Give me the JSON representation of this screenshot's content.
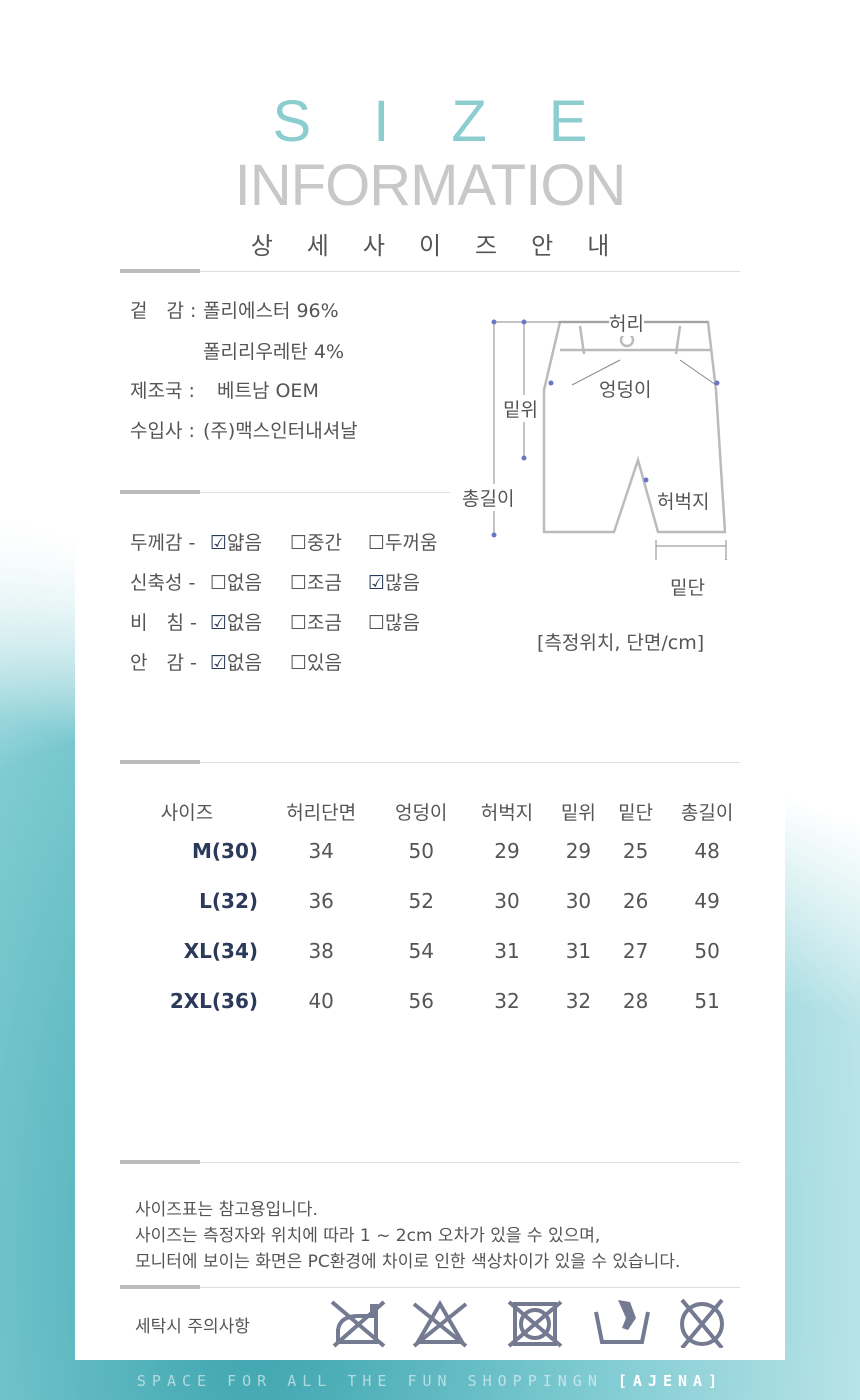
{
  "header": {
    "title_line1": "SIZE",
    "title_line2": "INFORMATION",
    "subtitle": "상세사이즈안내"
  },
  "material": {
    "outer_label": "겉　감 :",
    "outer_value1": "폴리에스터  96%",
    "outer_value2": "폴리리우레탄 4%",
    "origin_label": "제조국 :",
    "origin_value": "베트남 OEM",
    "importer_label": "수입사 :",
    "importer_value": "(주)맥스인터내셔날"
  },
  "diagram": {
    "waist": "허리",
    "hip": "엉덩이",
    "rise": "밑위",
    "length": "총길이",
    "thigh": "허벅지",
    "hem": "밑단",
    "note": "[측정위치, 단면/cm]",
    "line_color": "#6a77c4"
  },
  "properties": [
    {
      "label": "두께감 -",
      "options": [
        {
          "text": "얇음",
          "checked": true
        },
        {
          "text": "중간",
          "checked": false
        },
        {
          "text": "두꺼움",
          "checked": false
        }
      ]
    },
    {
      "label": "신축성 -",
      "options": [
        {
          "text": "없음",
          "checked": false
        },
        {
          "text": "조금",
          "checked": false
        },
        {
          "text": "많음",
          "checked": true
        }
      ]
    },
    {
      "label": "비　침 -",
      "options": [
        {
          "text": "없음",
          "checked": true
        },
        {
          "text": "조금",
          "checked": false
        },
        {
          "text": "많음",
          "checked": false
        }
      ]
    },
    {
      "label": "안　감 -",
      "options": [
        {
          "text": "없음",
          "checked": true
        },
        {
          "text": "있음",
          "checked": false
        }
      ]
    }
  ],
  "size_table": {
    "headers": [
      "사이즈",
      "허리단면",
      "엉덩이",
      "허벅지",
      "밑위",
      "밑단",
      "총길이"
    ],
    "rows": [
      [
        "M(30)",
        "34",
        "50",
        "29",
        "29",
        "25",
        "48"
      ],
      [
        "L(32)",
        "36",
        "52",
        "30",
        "30",
        "26",
        "49"
      ],
      [
        "XL(34)",
        "38",
        "54",
        "31",
        "31",
        "27",
        "50"
      ],
      [
        "2XL(36)",
        "40",
        "56",
        "32",
        "32",
        "28",
        "51"
      ]
    ]
  },
  "notes": [
    "사이즈표는 참고용입니다.",
    "사이즈는 측정자와 위치에 따라 1 ~ 2cm 오차가 있을 수 있으며,",
    "모니터에 보이는 화면은 PC환경에 차이로 인한 색상차이가 있을 수 있습니다."
  ],
  "care": {
    "label": "세탁시 주의사항",
    "icons": [
      "no-iron-icon",
      "no-bleach-icon",
      "no-tumble-dry-icon",
      "hand-wash-icon",
      "no-dry-clean-icon"
    ],
    "icon_color": "#737a91"
  },
  "footer": {
    "slogan": "SPACE FOR ALL THE FUN SHOPPINGN",
    "brand": "[AJENA]"
  },
  "colors": {
    "title": "#8ccdd0",
    "size_label": "#2b3a5a"
  }
}
